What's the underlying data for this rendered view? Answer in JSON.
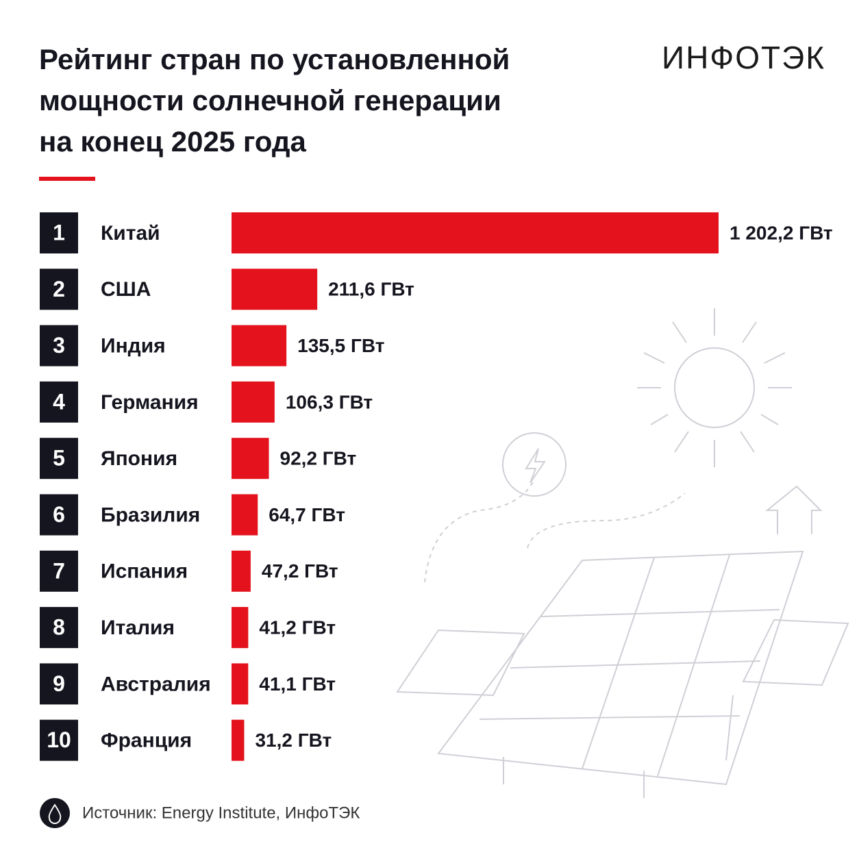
{
  "chart_data": {
    "type": "bar",
    "title": [
      "Рейтинг стран по установленной",
      "мощности солнечной генерации",
      "на конец 2025 года"
    ],
    "logo": "ИНФОТЭК",
    "ranks": [
      1,
      2,
      3,
      4,
      5,
      6,
      7,
      8,
      9,
      10
    ],
    "categories": [
      "Китай",
      "США",
      "Индия",
      "Германия",
      "Япония",
      "Бразилия",
      "Испания",
      "Италия",
      "Австралия",
      "Франция"
    ],
    "values": [
      1202.2,
      211.6,
      135.5,
      106.3,
      92.2,
      64.7,
      47.2,
      41.2,
      41.1,
      31.2
    ],
    "value_labels": [
      "1 202,2 ГВт",
      "211,6 ГВт",
      "135,5 ГВт",
      "106,3 ГВт",
      "92,2 ГВт",
      "64,7 ГВт",
      "47,2 ГВт",
      "41,2 ГВт",
      "41,1 ГВт",
      "31,2 ГВт"
    ],
    "color": "#e3121c",
    "source": "Источник: Energy Institute, ИнфоТЭК"
  }
}
